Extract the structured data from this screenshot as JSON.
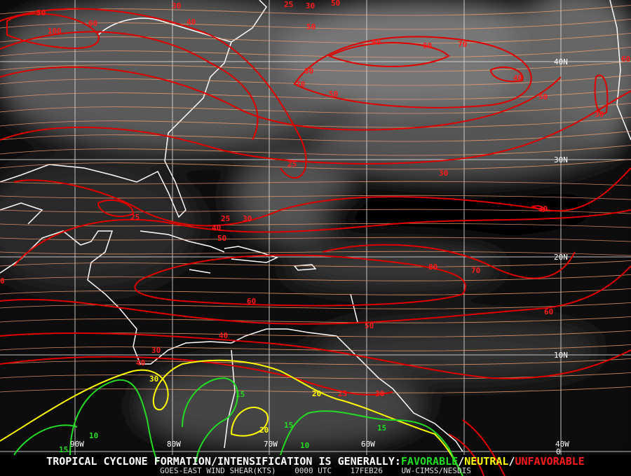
{
  "product": {
    "title": "GOES-EAST WIND SHEAR(KTS)",
    "time": "0000 UTC",
    "date": "17FEB26",
    "source": "UW-CIMSS/NESDIS"
  },
  "legend": {
    "prefix": "TROPICAL CYCLONE FORMATION/INTENSIFICATION IS GENERALLY:",
    "favorable": "FAVORABLE",
    "sep1": "/",
    "neutral": "NEUTRAL",
    "sep2": "/",
    "unfavorable": "UNFAVORABLE",
    "colors": {
      "favorable": "#22dd22",
      "neutral": "#ffff00",
      "unfavorable": "#ff1a1a"
    }
  },
  "grid": {
    "lat_labels": [
      "40N",
      "30N",
      "20N",
      "10N",
      "0"
    ],
    "lon_labels": [
      "90W",
      "80W",
      "70W",
      "60W",
      "40W"
    ]
  },
  "contour_labels": [
    {
      "v": "50",
      "c": "unfavorable"
    },
    {
      "v": "100",
      "c": "unfavorable"
    },
    {
      "v": "60",
      "c": "unfavorable"
    },
    {
      "v": "30",
      "c": "unfavorable"
    },
    {
      "v": "40",
      "c": "unfavorable"
    },
    {
      "v": "25",
      "c": "unfavorable"
    },
    {
      "v": "30",
      "c": "unfavorable"
    },
    {
      "v": "50",
      "c": "unfavorable"
    },
    {
      "v": "50",
      "c": "unfavorable"
    },
    {
      "v": "90",
      "c": "unfavorable"
    },
    {
      "v": "60",
      "c": "unfavorable"
    },
    {
      "v": "70",
      "c": "unfavorable"
    },
    {
      "v": "80",
      "c": "unfavorable"
    },
    {
      "v": "70",
      "c": "unfavorable"
    },
    {
      "v": "50",
      "c": "unfavorable"
    },
    {
      "v": "40",
      "c": "unfavorable"
    },
    {
      "v": "50",
      "c": "unfavorable"
    },
    {
      "v": "30",
      "c": "unfavorable"
    },
    {
      "v": "60",
      "c": "unfavorable"
    },
    {
      "v": "25",
      "c": "unfavorable"
    },
    {
      "v": "30",
      "c": "unfavorable"
    },
    {
      "v": "25",
      "c": "unfavorable"
    },
    {
      "v": "25",
      "c": "unfavorable"
    },
    {
      "v": "30",
      "c": "unfavorable"
    },
    {
      "v": "30",
      "c": "unfavorable"
    },
    {
      "v": "40",
      "c": "unfavorable"
    },
    {
      "v": "50",
      "c": "unfavorable"
    },
    {
      "v": "80",
      "c": "unfavorable"
    },
    {
      "v": "70",
      "c": "unfavorable"
    },
    {
      "v": "60",
      "c": "unfavorable"
    },
    {
      "v": "60",
      "c": "unfavorable"
    },
    {
      "v": "50",
      "c": "unfavorable"
    },
    {
      "v": "40",
      "c": "unfavorable"
    },
    {
      "v": "30",
      "c": "unfavorable"
    },
    {
      "v": "40",
      "c": "unfavorable"
    },
    {
      "v": "25",
      "c": "unfavorable"
    },
    {
      "v": "30",
      "c": "unfavorable"
    },
    {
      "v": "0",
      "c": "unfavorable"
    },
    {
      "v": "30",
      "c": "neutral"
    },
    {
      "v": "20",
      "c": "neutral"
    },
    {
      "v": "20",
      "c": "neutral"
    },
    {
      "v": "15",
      "c": "favorable"
    },
    {
      "v": "10",
      "c": "favorable"
    },
    {
      "v": "15",
      "c": "favorable"
    },
    {
      "v": "15",
      "c": "favorable"
    },
    {
      "v": "10",
      "c": "favorable"
    },
    {
      "v": "15",
      "c": "favorable"
    }
  ]
}
